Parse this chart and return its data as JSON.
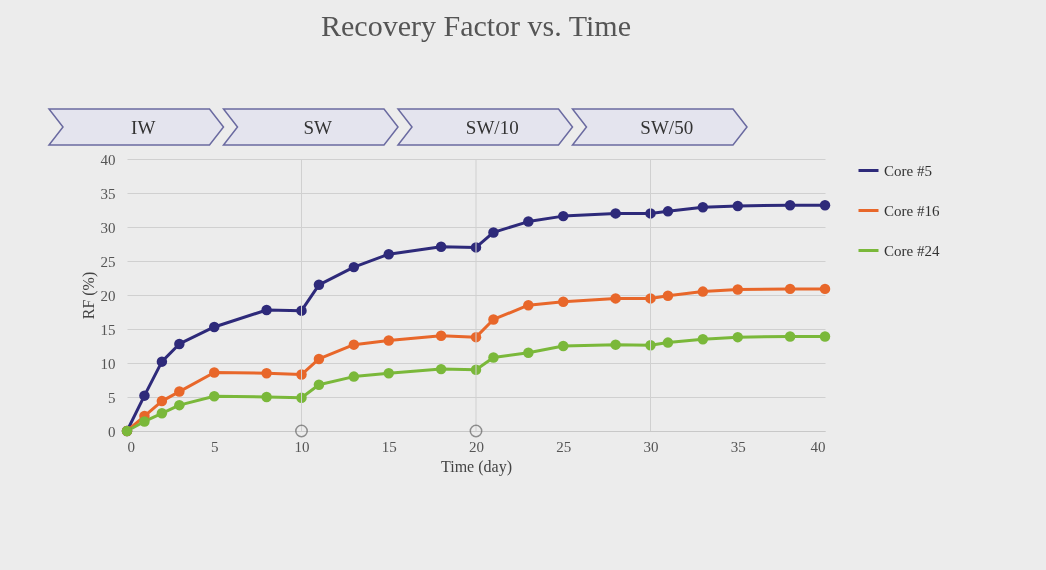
{
  "chart_data": {
    "type": "line",
    "title": "Recovery Factor vs. Time",
    "xlabel": "Time (day)",
    "ylabel": "RF (%)",
    "x": [
      0,
      1,
      2,
      3,
      5,
      8,
      10,
      11,
      13,
      15,
      18,
      20,
      21,
      23,
      25,
      28,
      30,
      31,
      33,
      35,
      38,
      40
    ],
    "series": [
      {
        "name": "Core #5",
        "color": "#2e2a7a",
        "values": [
          0,
          5.2,
          10.2,
          12.8,
          15.3,
          17.8,
          17.7,
          21.5,
          24.1,
          26,
          27.1,
          27,
          29.2,
          30.8,
          31.6,
          32,
          32,
          32.3,
          32.9,
          33.1,
          33.2,
          33.2
        ]
      },
      {
        "name": "Core #16",
        "color": "#e8672a",
        "values": [
          0,
          2.2,
          4.4,
          5.8,
          8.6,
          8.5,
          8.3,
          10.6,
          12.7,
          13.3,
          14,
          13.8,
          16.4,
          18.5,
          19,
          19.5,
          19.5,
          19.9,
          20.5,
          20.8,
          20.9,
          20.9
        ]
      },
      {
        "name": "Core #24",
        "color": "#7ab83a",
        "values": [
          0,
          1.4,
          2.6,
          3.8,
          5.1,
          5,
          4.9,
          6.8,
          8,
          8.5,
          9.1,
          9,
          10.8,
          11.5,
          12.5,
          12.7,
          12.6,
          13,
          13.5,
          13.8,
          13.9,
          13.9
        ]
      },
      {
        "type": "scatter",
        "color": "#666666",
        "x": [
          10,
          20
        ],
        "values": [
          0,
          0
        ]
      }
    ],
    "annotations": [
      "IW",
      "SW",
      "SW/10",
      "SW/50"
    ],
    "ref_lines": [
      {
        "axis": "x",
        "value": 10,
        "color": "#d0d0d0"
      },
      {
        "axis": "x",
        "value": 20,
        "color": "#d0d0d0"
      },
      {
        "axis": "x",
        "value": 30,
        "color": "#d0d0d0"
      }
    ],
    "xlim": [
      0,
      40
    ],
    "xticks": [
      0,
      5,
      10,
      15,
      20,
      25,
      30,
      35,
      40
    ],
    "ylim": [
      0,
      40
    ],
    "yticks": [
      0,
      5,
      10,
      15,
      20,
      25,
      30,
      35,
      40
    ],
    "grid": "y",
    "legend": "right",
    "marker": "circle",
    "line_style": "solid"
  }
}
